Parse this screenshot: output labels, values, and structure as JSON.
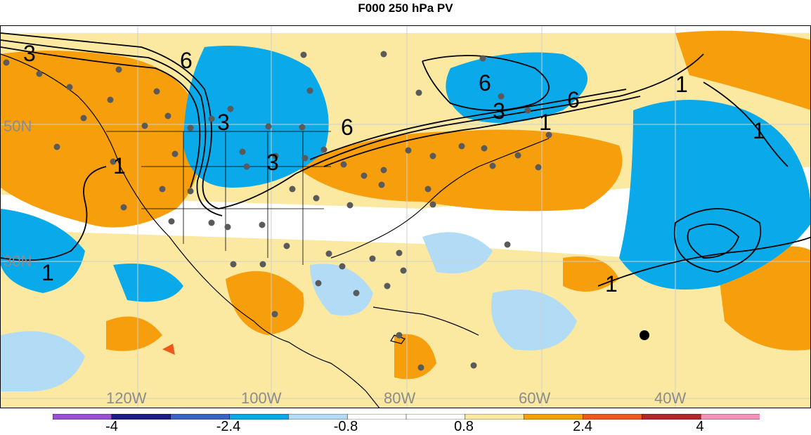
{
  "title": "F000 250 hPa PV",
  "lat_labels": [
    "50N",
    "30N"
  ],
  "lon_labels": [
    "120W",
    "100W",
    "80W",
    "60W",
    "40W"
  ],
  "contour_labels": [
    "3",
    "6",
    "1"
  ],
  "colorbar": {
    "tick_labels": [
      "-4",
      "-2.4",
      "-0.8",
      "0.8",
      "2.4",
      "4"
    ],
    "colors": [
      "#9b4fd3",
      "#1c1c8c",
      "#3a63c9",
      "#09a9ea",
      "#b2dcf5",
      "#ffffff",
      "#ffffff",
      "#fbe8a1",
      "#f79e0c",
      "#ee5a19",
      "#b32728",
      "#f592b8"
    ]
  },
  "colors": {
    "light_blue": "#b2dcf5",
    "blue": "#09a9ea",
    "light_yellow": "#fbe8a1",
    "orange": "#f79e0c",
    "red": "#ee5a19",
    "station_dot": "#5a5a5a",
    "label_gray": "#8c8c8c"
  }
}
